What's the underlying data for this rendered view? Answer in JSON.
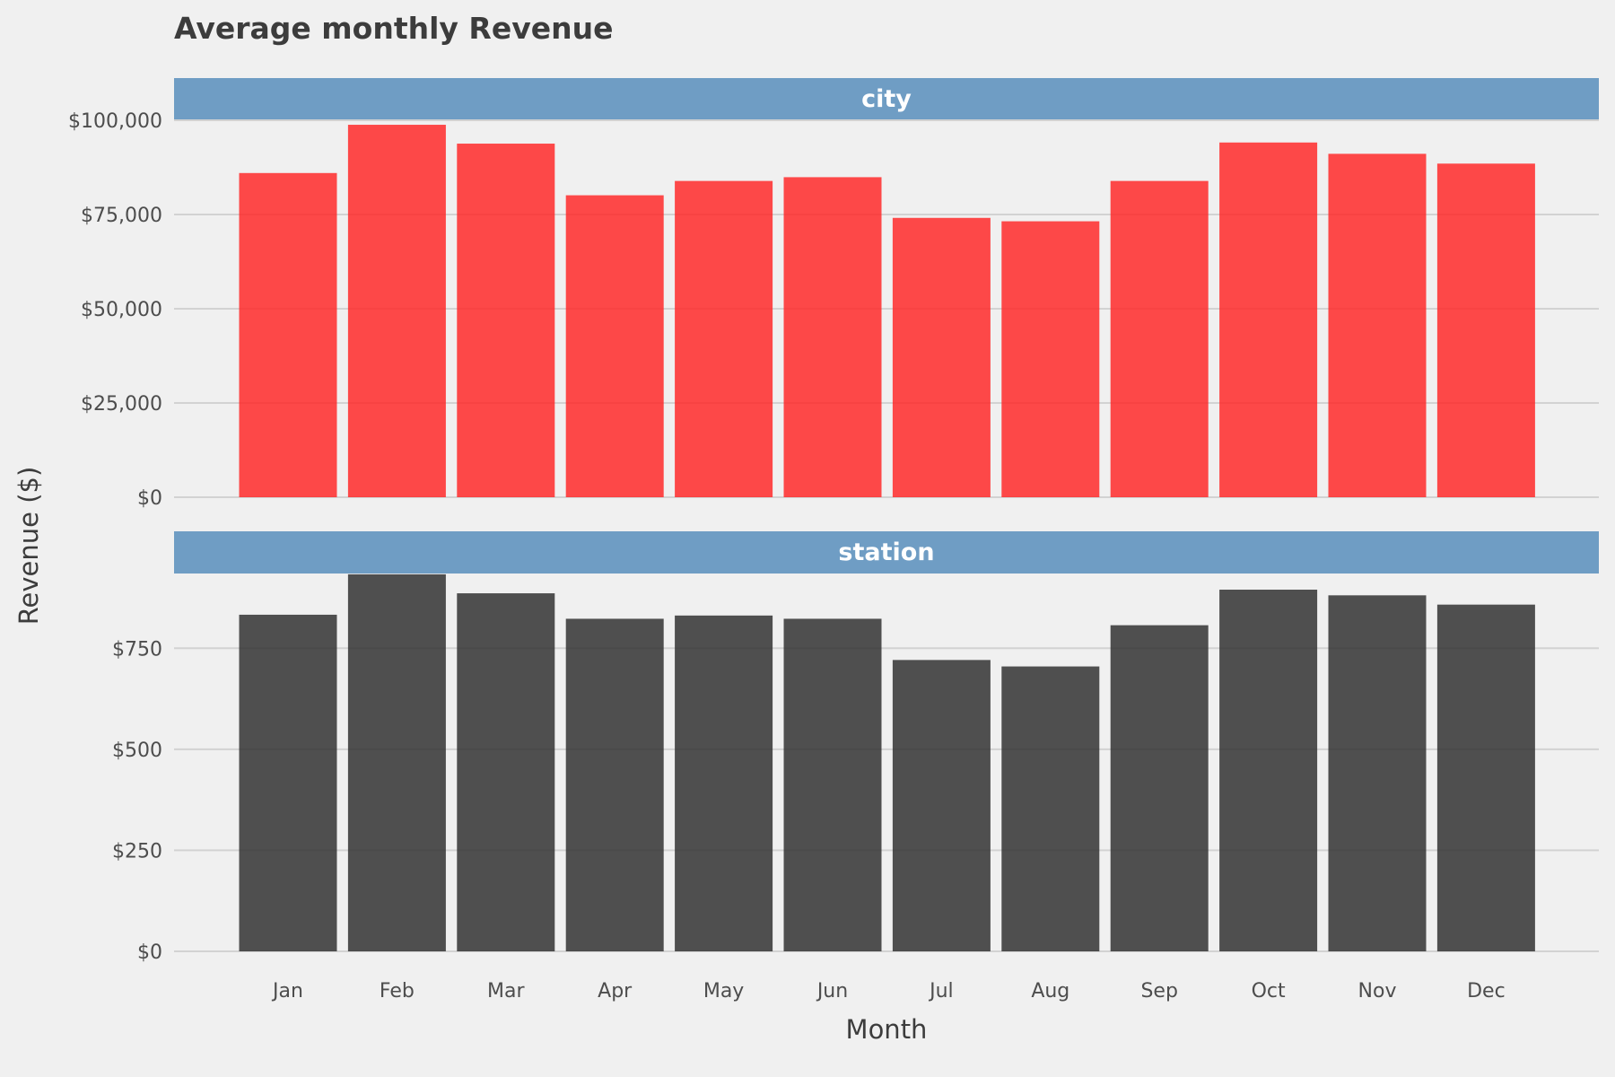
{
  "chart_data": {
    "type": "bar",
    "title": "Average monthly Revenue",
    "xlabel": "Month",
    "ylabel": "Revenue ($)",
    "categories": [
      "Jan",
      "Feb",
      "Mar",
      "Apr",
      "May",
      "Jun",
      "Jul",
      "Aug",
      "Sep",
      "Oct",
      "Nov",
      "Dec"
    ],
    "panels": [
      {
        "strip": "city",
        "color": "#ff2a2a",
        "ylim": [
          0,
          100000
        ],
        "yticks": [
          0,
          25000,
          50000,
          75000,
          100000
        ],
        "ytick_labels": [
          "$0",
          "$25,000",
          "$50,000",
          "$75,000",
          "$100,000"
        ],
        "values": [
          86000,
          98800,
          93800,
          80100,
          83900,
          84900,
          74100,
          73200,
          83900,
          94100,
          91100,
          88500
        ]
      },
      {
        "strip": "station",
        "color": "#323232",
        "ylim": [
          0,
          935
        ],
        "yticks": [
          0,
          250,
          500,
          750
        ],
        "ytick_labels": [
          "$0",
          "$250",
          "$500",
          "$750"
        ],
        "values": [
          833,
          933,
          886,
          823,
          831,
          823,
          721,
          705,
          807,
          895,
          881,
          858
        ]
      }
    ],
    "strip_color": "#6f9dc4",
    "background": "#f0f0f0",
    "grid": true,
    "legend": "none"
  }
}
